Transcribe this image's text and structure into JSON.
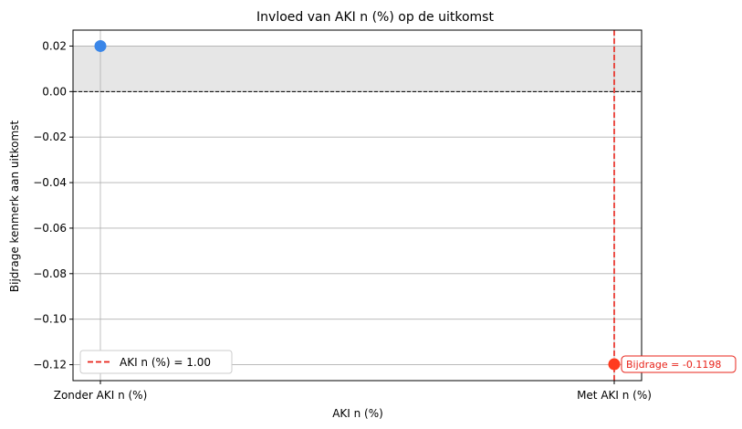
{
  "chart_data": {
    "type": "scatter",
    "title": "Invloed van AKI n (%) op de uitkomst",
    "xlabel": "AKI n (%)",
    "ylabel": "Bijdrage kenmerk aan uitkomst",
    "categories": [
      "Zonder AKI n (%)",
      "Met AKI n (%)"
    ],
    "points": [
      {
        "category": "Zonder AKI n (%)",
        "value": 0.02,
        "color": "#3a86e8"
      },
      {
        "category": "Met AKI n (%)",
        "value": -0.1198,
        "color": "#ff3b1f"
      }
    ],
    "ylim": [
      -0.127,
      0.027
    ],
    "yticks": [
      0.02,
      0.0,
      -0.02,
      -0.04,
      -0.06,
      -0.08,
      -0.1,
      -0.12
    ],
    "ytick_labels": [
      "0.02",
      "0.00",
      "−0.02",
      "−0.04",
      "−0.06",
      "−0.08",
      "−0.10",
      "−0.12"
    ],
    "grid": true,
    "shaded_band": {
      "from": 0.0,
      "to": 0.02,
      "color": "#e6e6e6"
    },
    "zero_line": {
      "value": 0.0,
      "style": "dashed",
      "color": "#000000"
    },
    "vline": {
      "category": "Met AKI n (%)",
      "style": "dashed",
      "color": "#e8231a"
    },
    "legend": {
      "position": "bottom-left",
      "entries": [
        {
          "label": "AKI n (%) = 1.00",
          "color": "#e8231a",
          "style": "dashed"
        }
      ]
    },
    "annotation": {
      "text": "Bijdrage = -0.1198",
      "category": "Met AKI n (%)",
      "value": -0.1198,
      "color": "#e8231a"
    }
  }
}
